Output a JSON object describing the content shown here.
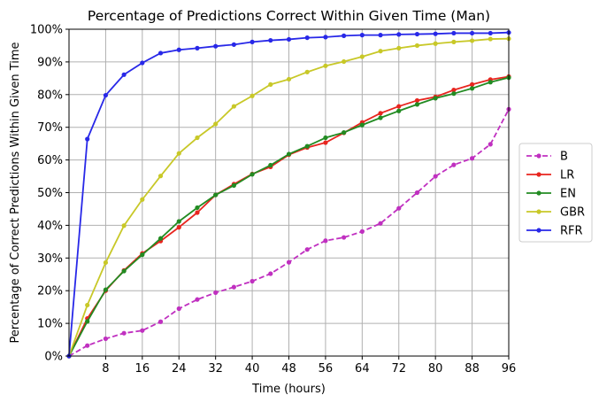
{
  "chart_data": {
    "type": "line",
    "title": "Percentage of Predictions Correct Within Given Time (Man)",
    "xlabel": "Time (hours)",
    "ylabel": "Percentage of Correct Predictions Within Given Time",
    "xlim": [
      0,
      96
    ],
    "ylim": [
      0,
      100
    ],
    "x_ticks": [
      8,
      16,
      24,
      32,
      40,
      48,
      56,
      64,
      72,
      80,
      88,
      96
    ],
    "x_tick_labels": [
      "8",
      "16",
      "24",
      "32",
      "40",
      "48",
      "56",
      "64",
      "72",
      "80",
      "88",
      "96"
    ],
    "y_ticks": [
      0,
      10,
      20,
      30,
      40,
      50,
      60,
      70,
      80,
      90,
      100
    ],
    "y_tick_labels": [
      "0%",
      "10%",
      "20%",
      "30%",
      "40%",
      "50%",
      "60%",
      "70%",
      "80%",
      "90%",
      "100%"
    ],
    "grid": true,
    "legend_position": "center-right-outside",
    "x": [
      0,
      4,
      8,
      12,
      16,
      20,
      24,
      28,
      32,
      36,
      40,
      44,
      48,
      52,
      56,
      60,
      64,
      68,
      72,
      76,
      80,
      84,
      88,
      92,
      96
    ],
    "series": [
      {
        "name": "B",
        "color": "#c030c0",
        "dashed": true,
        "values": [
          0,
          3.2,
          5.3,
          7.0,
          7.8,
          10.5,
          14.5,
          17.3,
          19.4,
          21.1,
          22.9,
          25.2,
          28.7,
          32.6,
          35.3,
          36.3,
          38.1,
          40.6,
          45.2,
          50.0,
          55.0,
          58.5,
          60.5,
          64.8,
          75.5
        ]
      },
      {
        "name": "LR",
        "color": "#e8251f",
        "dashed": false,
        "values": [
          0,
          11.5,
          20.0,
          26.2,
          31.4,
          35.2,
          39.4,
          43.9,
          49.3,
          52.6,
          55.7,
          57.9,
          61.6,
          63.8,
          65.3,
          68.3,
          71.5,
          74.3,
          76.4,
          78.2,
          79.3,
          81.4,
          83.1,
          84.6,
          85.5
        ]
      },
      {
        "name": "EN",
        "color": "#228b22",
        "dashed": false,
        "values": [
          0,
          10.6,
          20.3,
          26.0,
          31.0,
          36.0,
          41.2,
          45.4,
          49.3,
          52.2,
          55.6,
          58.4,
          61.8,
          64.2,
          66.8,
          68.4,
          70.7,
          72.9,
          75.0,
          77.0,
          78.9,
          80.3,
          81.9,
          83.8,
          85.2
        ]
      },
      {
        "name": "GBR",
        "color": "#c8c828",
        "dashed": false,
        "values": [
          0,
          15.6,
          28.6,
          39.9,
          47.9,
          55.1,
          62.0,
          66.8,
          71.0,
          76.4,
          79.6,
          83.1,
          84.7,
          86.9,
          88.8,
          90.1,
          91.6,
          93.3,
          94.2,
          95.0,
          95.6,
          96.1,
          96.5,
          97.0,
          97.1
        ]
      },
      {
        "name": "RFR",
        "color": "#2828e8",
        "dashed": false,
        "values": [
          0,
          66.4,
          79.8,
          86.1,
          89.7,
          92.7,
          93.7,
          94.2,
          94.8,
          95.3,
          96.1,
          96.6,
          96.9,
          97.4,
          97.6,
          98.0,
          98.2,
          98.2,
          98.4,
          98.5,
          98.6,
          98.8,
          98.8,
          98.8,
          99.0
        ]
      }
    ]
  }
}
